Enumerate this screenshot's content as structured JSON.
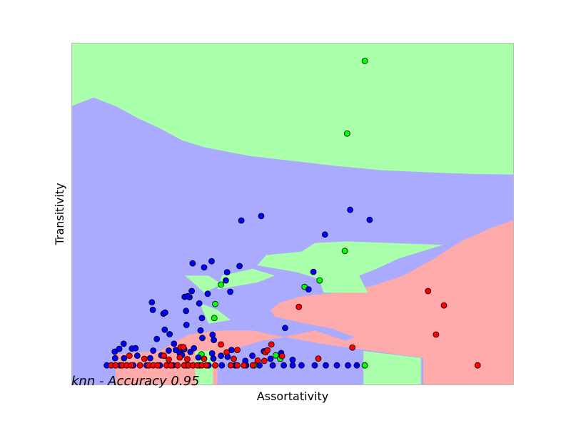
{
  "colors": {
    "region_blue": "#aaaaff",
    "region_green": "#aaffaa",
    "region_red": "#ffaaaa",
    "point_blue": "#0000ff",
    "point_green": "#00ff00",
    "point_red": "#ff0000",
    "point_edge": "#000000",
    "frame": "#bbbbbb"
  },
  "chart_data": {
    "type": "scatter",
    "xlabel": "Assortativity",
    "ylabel": "Transitivity",
    "annotation": "knn - Accuracy 0.95",
    "annotation_position": "bottom-left",
    "xlim": [
      0,
      1
    ],
    "ylim": [
      0,
      1
    ],
    "grid": false,
    "axis_ticks": false,
    "legend": "none",
    "series": [
      {
        "color": "#00ff00",
        "points": [
          [
            0.663,
            0.947
          ],
          [
            0.623,
            0.735
          ],
          [
            0.618,
            0.392
          ],
          [
            0.561,
            0.306
          ],
          [
            0.527,
            0.287
          ],
          [
            0.338,
            0.294
          ],
          [
            0.325,
            0.237
          ],
          [
            0.323,
            0.196
          ],
          [
            0.294,
            0.09
          ],
          [
            0.462,
            0.087
          ],
          [
            0.472,
            0.077
          ],
          [
            0.413,
            0.058
          ],
          [
            0.663,
            0.058
          ]
        ]
      },
      {
        "color": "#0000ff",
        "points": [
          [
            0.429,
            0.494
          ],
          [
            0.384,
            0.481
          ],
          [
            0.63,
            0.512
          ],
          [
            0.674,
            0.483
          ],
          [
            0.573,
            0.44
          ],
          [
            0.317,
            0.362
          ],
          [
            0.3,
            0.344
          ],
          [
            0.38,
            0.348
          ],
          [
            0.352,
            0.33
          ],
          [
            0.274,
            0.356
          ],
          [
            0.547,
            0.331
          ],
          [
            0.349,
            0.306
          ],
          [
            0.536,
            0.28
          ],
          [
            0.359,
            0.273
          ],
          [
            0.308,
            0.267
          ],
          [
            0.272,
            0.275
          ],
          [
            0.267,
            0.257
          ],
          [
            0.256,
            0.258
          ],
          [
            0.263,
            0.26
          ],
          [
            0.182,
            0.242
          ],
          [
            0.289,
            0.239
          ],
          [
            0.184,
            0.22
          ],
          [
            0.208,
            0.209
          ],
          [
            0.212,
            0.212
          ],
          [
            0.259,
            0.217
          ],
          [
            0.295,
            0.196
          ],
          [
            0.26,
            0.176
          ],
          [
            0.483,
            0.167
          ],
          [
            0.211,
            0.162
          ],
          [
            0.222,
            0.149
          ],
          [
            0.292,
            0.16
          ],
          [
            0.319,
            0.147
          ],
          [
            0.322,
            0.132
          ],
          [
            0.193,
            0.135
          ],
          [
            0.232,
            0.121
          ],
          [
            0.296,
            0.138
          ],
          [
            0.118,
            0.121
          ],
          [
            0.137,
            0.107
          ],
          [
            0.145,
            0.108
          ],
          [
            0.098,
            0.098
          ],
          [
            0.108,
            0.106
          ],
          [
            0.185,
            0.101
          ],
          [
            0.255,
            0.105
          ],
          [
            0.277,
            0.108
          ],
          [
            0.22,
            0.101
          ],
          [
            0.236,
            0.103
          ],
          [
            0.362,
            0.103
          ],
          [
            0.435,
            0.099
          ],
          [
            0.245,
            0.093
          ],
          [
            0.269,
            0.097
          ],
          [
            0.318,
            0.093
          ],
          [
            0.338,
            0.086
          ],
          [
            0.409,
            0.086
          ],
          [
            0.474,
            0.094
          ],
          [
            0.099,
            0.079
          ],
          [
            0.119,
            0.079
          ],
          [
            0.149,
            0.086
          ],
          [
            0.178,
            0.079
          ],
          [
            0.203,
            0.087
          ],
          [
            0.25,
            0.088
          ],
          [
            0.287,
            0.081
          ],
          [
            0.321,
            0.078
          ],
          [
            0.353,
            0.083
          ],
          [
            0.393,
            0.071
          ],
          [
            0.45,
            0.077
          ],
          [
            0.5,
            0.074
          ],
          [
            0.08,
            0.058
          ],
          [
            0.11,
            0.058
          ],
          [
            0.14,
            0.058
          ],
          [
            0.17,
            0.058
          ],
          [
            0.2,
            0.058
          ],
          [
            0.23,
            0.058
          ],
          [
            0.26,
            0.058
          ],
          [
            0.29,
            0.058
          ],
          [
            0.31,
            0.058
          ],
          [
            0.34,
            0.058
          ],
          [
            0.37,
            0.058
          ],
          [
            0.395,
            0.058
          ],
          [
            0.425,
            0.058
          ],
          [
            0.455,
            0.058
          ],
          [
            0.48,
            0.058
          ],
          [
            0.5,
            0.058
          ],
          [
            0.52,
            0.058
          ],
          [
            0.55,
            0.058
          ],
          [
            0.575,
            0.058
          ],
          [
            0.6,
            0.058
          ],
          [
            0.625,
            0.058
          ],
          [
            0.645,
            0.058
          ]
        ]
      },
      {
        "color": "#ff0000",
        "points": [
          [
            0.806,
            0.275
          ],
          [
            0.842,
            0.233
          ],
          [
            0.514,
            0.229
          ],
          [
            0.824,
            0.148
          ],
          [
            0.635,
            0.11
          ],
          [
            0.452,
            0.119
          ],
          [
            0.338,
            0.119
          ],
          [
            0.247,
            0.111
          ],
          [
            0.253,
            0.111
          ],
          [
            0.439,
            0.096
          ],
          [
            0.443,
            0.102
          ],
          [
            0.375,
            0.103
          ],
          [
            0.131,
            0.086
          ],
          [
            0.209,
            0.086
          ],
          [
            0.351,
            0.096
          ],
          [
            0.476,
            0.085
          ],
          [
            0.558,
            0.078
          ],
          [
            0.165,
            0.077
          ],
          [
            0.22,
            0.075
          ],
          [
            0.245,
            0.081
          ],
          [
            0.262,
            0.076
          ],
          [
            0.3,
            0.077
          ],
          [
            0.367,
            0.077
          ],
          [
            0.421,
            0.072
          ],
          [
            0.436,
            0.071
          ],
          [
            0.09,
            0.058
          ],
          [
            0.1,
            0.058
          ],
          [
            0.115,
            0.058
          ],
          [
            0.125,
            0.058
          ],
          [
            0.135,
            0.058
          ],
          [
            0.155,
            0.058
          ],
          [
            0.175,
            0.058
          ],
          [
            0.185,
            0.058
          ],
          [
            0.195,
            0.058
          ],
          [
            0.215,
            0.058
          ],
          [
            0.225,
            0.058
          ],
          [
            0.24,
            0.058
          ],
          [
            0.255,
            0.058
          ],
          [
            0.265,
            0.058
          ],
          [
            0.275,
            0.058
          ],
          [
            0.285,
            0.058
          ],
          [
            0.295,
            0.058
          ],
          [
            0.305,
            0.058
          ],
          [
            0.325,
            0.058
          ],
          [
            0.36,
            0.058
          ],
          [
            0.375,
            0.058
          ],
          [
            0.39,
            0.058
          ],
          [
            0.41,
            0.058
          ],
          [
            0.918,
            0.058
          ]
        ]
      }
    ]
  },
  "decision_regions": {
    "background_class": "blue",
    "regions": [
      {
        "class": "green",
        "polygon": [
          [
            0,
            1
          ],
          [
            1,
            1
          ],
          [
            1,
            0.615
          ],
          [
            0.9,
            0.617
          ],
          [
            0.8,
            0.622
          ],
          [
            0.7,
            0.628
          ],
          [
            0.6,
            0.64
          ],
          [
            0.5,
            0.655
          ],
          [
            0.4,
            0.67
          ],
          [
            0.3,
            0.695
          ],
          [
            0.25,
            0.715
          ],
          [
            0.2,
            0.75
          ],
          [
            0.15,
            0.78
          ],
          [
            0.1,
            0.815
          ],
          [
            0.05,
            0.84
          ],
          [
            0,
            0.815
          ]
        ]
      },
      {
        "class": "red",
        "polygon": [
          [
            1,
            0.483
          ],
          [
            1,
            0
          ],
          [
            0.795,
            0
          ],
          [
            0.795,
            0.08
          ],
          [
            0.68,
            0.1
          ],
          [
            0.57,
            0.12
          ],
          [
            0.45,
            0.148
          ],
          [
            0.41,
            0.16
          ],
          [
            0.34,
            0.16
          ],
          [
            0.265,
            0.148
          ],
          [
            0.2,
            0.1
          ],
          [
            0.1,
            0.09
          ],
          [
            0.1,
            0
          ],
          [
            0.33,
            0
          ],
          [
            0.33,
            0.09
          ],
          [
            0.43,
            0.13
          ],
          [
            0.48,
            0.14
          ],
          [
            0.55,
            0.16
          ],
          [
            0.62,
            0.13
          ],
          [
            0.64,
            0.14
          ],
          [
            0.59,
            0.165
          ],
          [
            0.53,
            0.18
          ],
          [
            0.46,
            0.2
          ],
          [
            0.45,
            0.22
          ],
          [
            0.47,
            0.24
          ],
          [
            0.52,
            0.26
          ],
          [
            0.6,
            0.27
          ],
          [
            0.68,
            0.29
          ],
          [
            0.75,
            0.32
          ],
          [
            0.82,
            0.37
          ],
          [
            0.88,
            0.42
          ],
          [
            0.95,
            0.46
          ]
        ]
      },
      {
        "class": "green",
        "polygon": [
          [
            0.55,
            0.415
          ],
          [
            0.62,
            0.42
          ],
          [
            0.84,
            0.41
          ],
          [
            0.74,
            0.37
          ],
          [
            0.69,
            0.34
          ],
          [
            0.65,
            0.32
          ],
          [
            0.67,
            0.27
          ],
          [
            0.57,
            0.27
          ],
          [
            0.56,
            0.31
          ],
          [
            0.51,
            0.33
          ],
          [
            0.42,
            0.35
          ],
          [
            0.44,
            0.38
          ],
          [
            0.52,
            0.39
          ]
        ]
      },
      {
        "class": "green",
        "polygon": [
          [
            0.41,
            0.34
          ],
          [
            0.34,
            0.32
          ],
          [
            0.33,
            0.28
          ],
          [
            0.42,
            0.3
          ],
          [
            0.46,
            0.32
          ]
        ]
      },
      {
        "class": "green",
        "polygon": [
          [
            0.256,
            0.32
          ],
          [
            0.31,
            0.32
          ],
          [
            0.34,
            0.295
          ],
          [
            0.3,
            0.27
          ],
          [
            0.275,
            0.3
          ]
        ]
      },
      {
        "class": "green",
        "polygon": [
          [
            0.29,
            0.24
          ],
          [
            0.33,
            0.22
          ],
          [
            0.36,
            0.19
          ],
          [
            0.31,
            0.18
          ],
          [
            0.3,
            0.21
          ]
        ]
      },
      {
        "class": "green",
        "polygon": [
          [
            0.28,
            0.1
          ],
          [
            0.32,
            0.1
          ],
          [
            0.32,
            0
          ],
          [
            0.28,
            0
          ]
        ]
      },
      {
        "class": "green",
        "polygon": [
          [
            0.66,
            0.1
          ],
          [
            0.79,
            0.08
          ],
          [
            0.79,
            0
          ],
          [
            0.66,
            0
          ]
        ]
      }
    ]
  }
}
